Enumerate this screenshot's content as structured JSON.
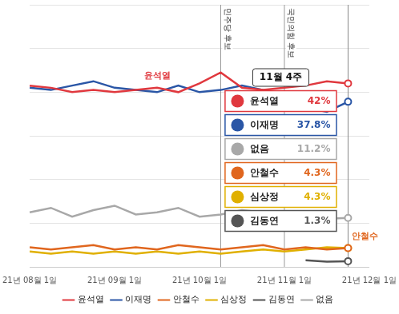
{
  "chart_data": {
    "type": "line",
    "categories": [
      "21년 08월 1일",
      null,
      null,
      null,
      "21년 09월 1일",
      null,
      null,
      null,
      "21년 10월 1일",
      null,
      null,
      null,
      "21년 11월 1일",
      null,
      null,
      null,
      "21년 12월 1일"
    ],
    "series": [
      {
        "name": "윤석열",
        "color": "#e0383e",
        "values": [
          41.5,
          41,
          40,
          40.5,
          40,
          40.5,
          41,
          40,
          42,
          44.5,
          41,
          40.5,
          41,
          41.5,
          42.5,
          42,
          null
        ]
      },
      {
        "name": "이재명",
        "color": "#2a56a6",
        "values": [
          41,
          40.5,
          41.5,
          42.5,
          41,
          40.5,
          40,
          41.5,
          40,
          40.5,
          41.5,
          40.5,
          39.5,
          36.5,
          35.5,
          37.8,
          null
        ]
      },
      {
        "name": "안철수",
        "color": "#e0661e",
        "values": [
          4.5,
          4,
          4.5,
          5,
          4,
          4.5,
          4,
          5,
          4.5,
          4,
          4.5,
          5,
          4,
          4.5,
          4,
          4.3,
          null
        ]
      },
      {
        "name": "심상정",
        "color": "#e0b000",
        "values": [
          3.5,
          3,
          3.5,
          3,
          3.5,
          3,
          3.5,
          3,
          3.5,
          3,
          3.5,
          4,
          3.5,
          4,
          4.5,
          4.3,
          null
        ]
      },
      {
        "name": "김동연",
        "color": "#555555",
        "values": [
          null,
          null,
          null,
          null,
          null,
          null,
          null,
          null,
          null,
          null,
          null,
          null,
          null,
          1.5,
          1.2,
          1.3,
          null
        ]
      },
      {
        "name": "없음",
        "color": "#a8a8a8",
        "values": [
          12.5,
          13.5,
          11.5,
          13,
          14,
          12,
          12.5,
          13.5,
          11.5,
          12,
          13,
          12.5,
          11.5,
          12,
          11,
          11.2,
          null
        ]
      }
    ],
    "ylim": [
      0,
      60
    ],
    "yticks": [
      0,
      10,
      20,
      30,
      40,
      50,
      60
    ],
    "grid": true,
    "tick_labels": "x",
    "legend": "bottom",
    "annotations": {
      "events": [
        {
          "text": "민주당 후보",
          "x_index": 9
        },
        {
          "text": "국민의힘 후보",
          "x_index": 12
        }
      ],
      "series_labels": [
        {
          "text": "윤석열",
          "x_index": 6
        },
        {
          "text": "안철수",
          "x_index": 15
        }
      ],
      "highlight": {
        "title": "11월 4주",
        "x_index": 15,
        "entries": [
          {
            "name": "윤석열",
            "label": "42%"
          },
          {
            "name": "이재명",
            "label": "37.8%"
          },
          {
            "name": "없음",
            "label": "11.2%"
          },
          {
            "name": "안철수",
            "label": "4.3%"
          },
          {
            "name": "심상정",
            "label": "4.3%"
          },
          {
            "name": "김동연",
            "label": "1.3%"
          }
        ]
      }
    }
  }
}
